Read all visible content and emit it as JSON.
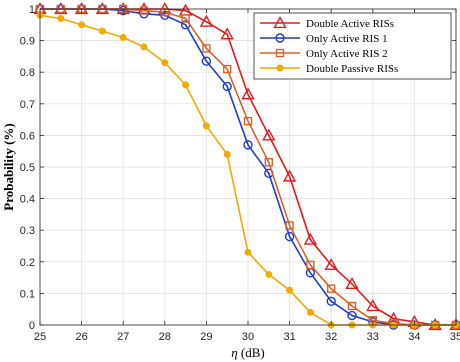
{
  "chart_data": {
    "type": "line",
    "xlabel_symbol": "η",
    "xlabel_unit": " (dB)",
    "ylabel": "Probability (%)",
    "xlim": [
      25,
      35
    ],
    "ylim": [
      0,
      1
    ],
    "xticks": [
      "25",
      "26",
      "27",
      "28",
      "29",
      "30",
      "31",
      "32",
      "33",
      "34",
      "35"
    ],
    "yticks": [
      "0",
      "0.1",
      "0.2",
      "0.3",
      "0.4",
      "0.5",
      "0.6",
      "0.7",
      "0.8",
      "0.9",
      "1"
    ],
    "grid": true,
    "legend_position": "top-right",
    "series": [
      {
        "name": "Double Active RISs",
        "marker": "triangle",
        "color": "#e31a1c",
        "x": [
          25,
          25.5,
          26,
          26.5,
          27,
          27.5,
          28,
          28.5,
          29,
          29.5,
          30,
          30.5,
          31,
          31.5,
          32,
          32.5,
          33,
          33.5,
          34,
          34.5,
          35
        ],
        "y": [
          1,
          1,
          1,
          1,
          1,
          1,
          1,
          0.995,
          0.96,
          0.92,
          0.73,
          0.6,
          0.47,
          0.27,
          0.19,
          0.13,
          0.06,
          0.02,
          0.01,
          0.0,
          0.0
        ]
      },
      {
        "name": "Only Active RIS 1",
        "marker": "circle",
        "color": "#1f3bd1",
        "x": [
          25,
          25.5,
          26,
          26.5,
          27,
          27.5,
          28,
          28.5,
          29,
          29.5,
          30,
          30.5,
          31,
          31.5,
          32,
          32.5,
          33,
          33.5,
          34,
          34.5,
          35
        ],
        "y": [
          1,
          1,
          1,
          1,
          0.995,
          0.985,
          0.98,
          0.95,
          0.835,
          0.755,
          0.57,
          0.48,
          0.28,
          0.165,
          0.075,
          0.03,
          0.01,
          0.0,
          0.0,
          0.0,
          0.0
        ]
      },
      {
        "name": "Only Active RIS 2",
        "marker": "square",
        "color": "#d9622b",
        "x": [
          25,
          25.5,
          26,
          26.5,
          27,
          27.5,
          28,
          28.5,
          29,
          29.5,
          30,
          30.5,
          31,
          31.5,
          32,
          32.5,
          33,
          33.5,
          34,
          34.5,
          35
        ],
        "y": [
          1,
          1,
          1,
          1,
          1,
          0.995,
          0.99,
          0.97,
          0.875,
          0.81,
          0.645,
          0.515,
          0.315,
          0.19,
          0.115,
          0.06,
          0.015,
          0.005,
          0.0,
          0.0,
          0.0
        ]
      },
      {
        "name": "Double Passive RISs",
        "marker": "dot",
        "color": "#f2a900",
        "x": [
          25,
          25.5,
          26,
          26.5,
          27,
          27.5,
          28,
          28.5,
          29,
          29.5,
          30,
          30.5,
          31,
          31.5,
          32,
          32.5,
          33,
          33.5,
          34,
          34.5,
          35
        ],
        "y": [
          0.98,
          0.97,
          0.95,
          0.93,
          0.91,
          0.88,
          0.83,
          0.76,
          0.63,
          0.54,
          0.23,
          0.16,
          0.11,
          0.04,
          0.0,
          0.0,
          0.0,
          0.0,
          0.0,
          0.0,
          0.0
        ]
      }
    ]
  }
}
